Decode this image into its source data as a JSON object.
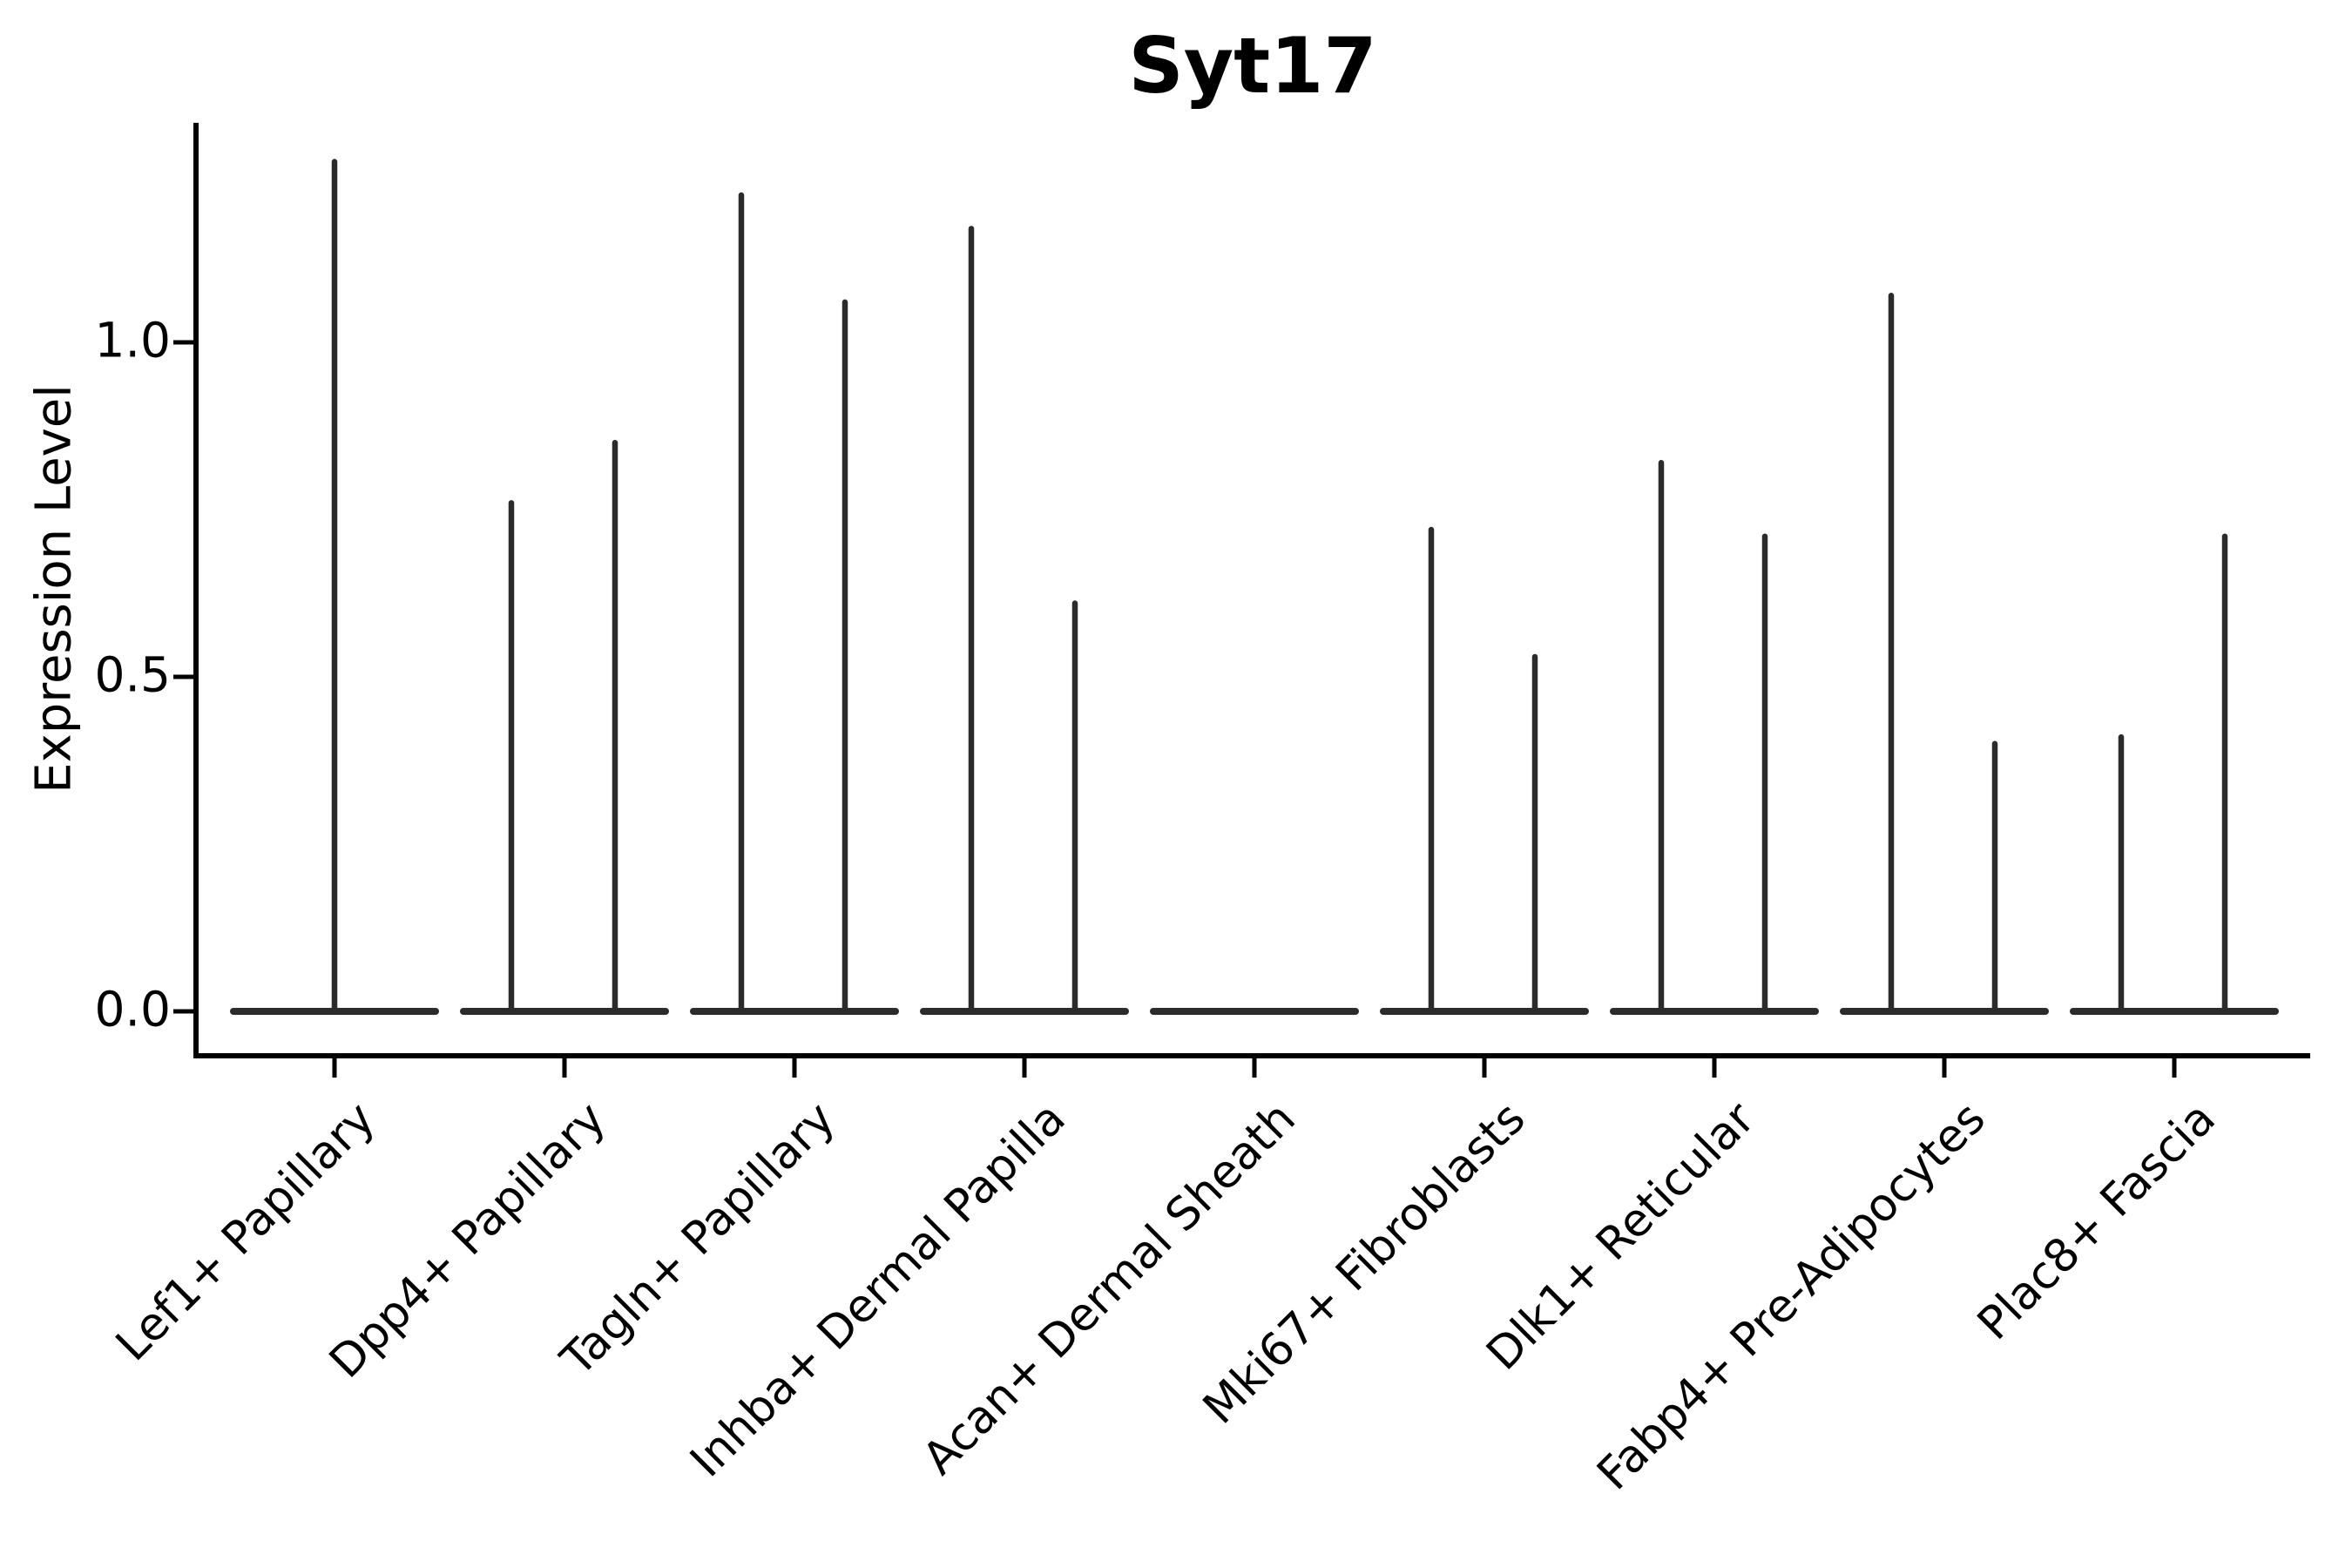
{
  "title": "Syt17",
  "y_axis": {
    "label": "Expression Level",
    "tick_labels": [
      "0.0",
      "0.5",
      "1.0"
    ],
    "tick_values": [
      0.0,
      0.5,
      1.0
    ]
  },
  "colors": {
    "background": "#ffffff",
    "axis": "#000000",
    "violin": "#2b2b2b",
    "text": "#000000"
  },
  "chart_data": {
    "type": "violin",
    "title": "Syt17",
    "xlabel": "",
    "ylabel": "Expression Level",
    "ylim": [
      -0.07,
      1.33
    ],
    "yticks": [
      0.0,
      0.5,
      1.0
    ],
    "grid": false,
    "legend": "none",
    "description": "Single-gene violin plot; every distribution is concentrated at 0 (flat wide base) with thin vertical density spikes reaching the maximum expression value. Most categories show two side-by-side sub-violins (two spikes).",
    "categories": [
      "Lef1+ Papillary",
      "Dpp4+ Papillary",
      "Tagln+ Papillary",
      "Inhba+ Dermal Papilla",
      "Acan+ Dermal Sheath",
      "Mki67+ Fibroblasts",
      "Dlk1+ Reticular",
      "Fabp4+ Pre-Adipocytes",
      "Plac8+ Fascia"
    ],
    "violins": [
      {
        "category": "Lef1+ Papillary",
        "baseline_value": 0,
        "spikes": [
          {
            "position": "center",
            "max_expression": 1.27
          }
        ]
      },
      {
        "category": "Dpp4+ Papillary",
        "baseline_value": 0,
        "spikes": [
          {
            "position": "left",
            "max_expression": 0.76
          },
          {
            "position": "right",
            "max_expression": 0.85
          }
        ]
      },
      {
        "category": "Tagln+ Papillary",
        "baseline_value": 0,
        "spikes": [
          {
            "position": "left",
            "max_expression": 1.22
          },
          {
            "position": "right",
            "max_expression": 1.06
          }
        ]
      },
      {
        "category": "Inhba+ Dermal Papilla",
        "baseline_value": 0,
        "spikes": [
          {
            "position": "left",
            "max_expression": 1.17
          },
          {
            "position": "right",
            "max_expression": 0.61
          }
        ]
      },
      {
        "category": "Acan+ Dermal Sheath",
        "baseline_value": 0,
        "spikes": []
      },
      {
        "category": "Mki67+ Fibroblasts",
        "baseline_value": 0,
        "spikes": [
          {
            "position": "left",
            "max_expression": 0.72
          },
          {
            "position": "right",
            "max_expression": 0.53
          }
        ]
      },
      {
        "category": "Dlk1+ Reticular",
        "baseline_value": 0,
        "spikes": [
          {
            "position": "left",
            "max_expression": 0.82
          },
          {
            "position": "right",
            "max_expression": 0.71
          }
        ]
      },
      {
        "category": "Fabp4+ Pre-Adipocytes",
        "baseline_value": 0,
        "spikes": [
          {
            "position": "left",
            "max_expression": 1.07
          },
          {
            "position": "right",
            "max_expression": 0.4
          }
        ]
      },
      {
        "category": "Plac8+ Fascia",
        "baseline_value": 0,
        "spikes": [
          {
            "position": "left",
            "max_expression": 0.41
          },
          {
            "position": "right",
            "max_expression": 0.71
          }
        ]
      }
    ]
  }
}
